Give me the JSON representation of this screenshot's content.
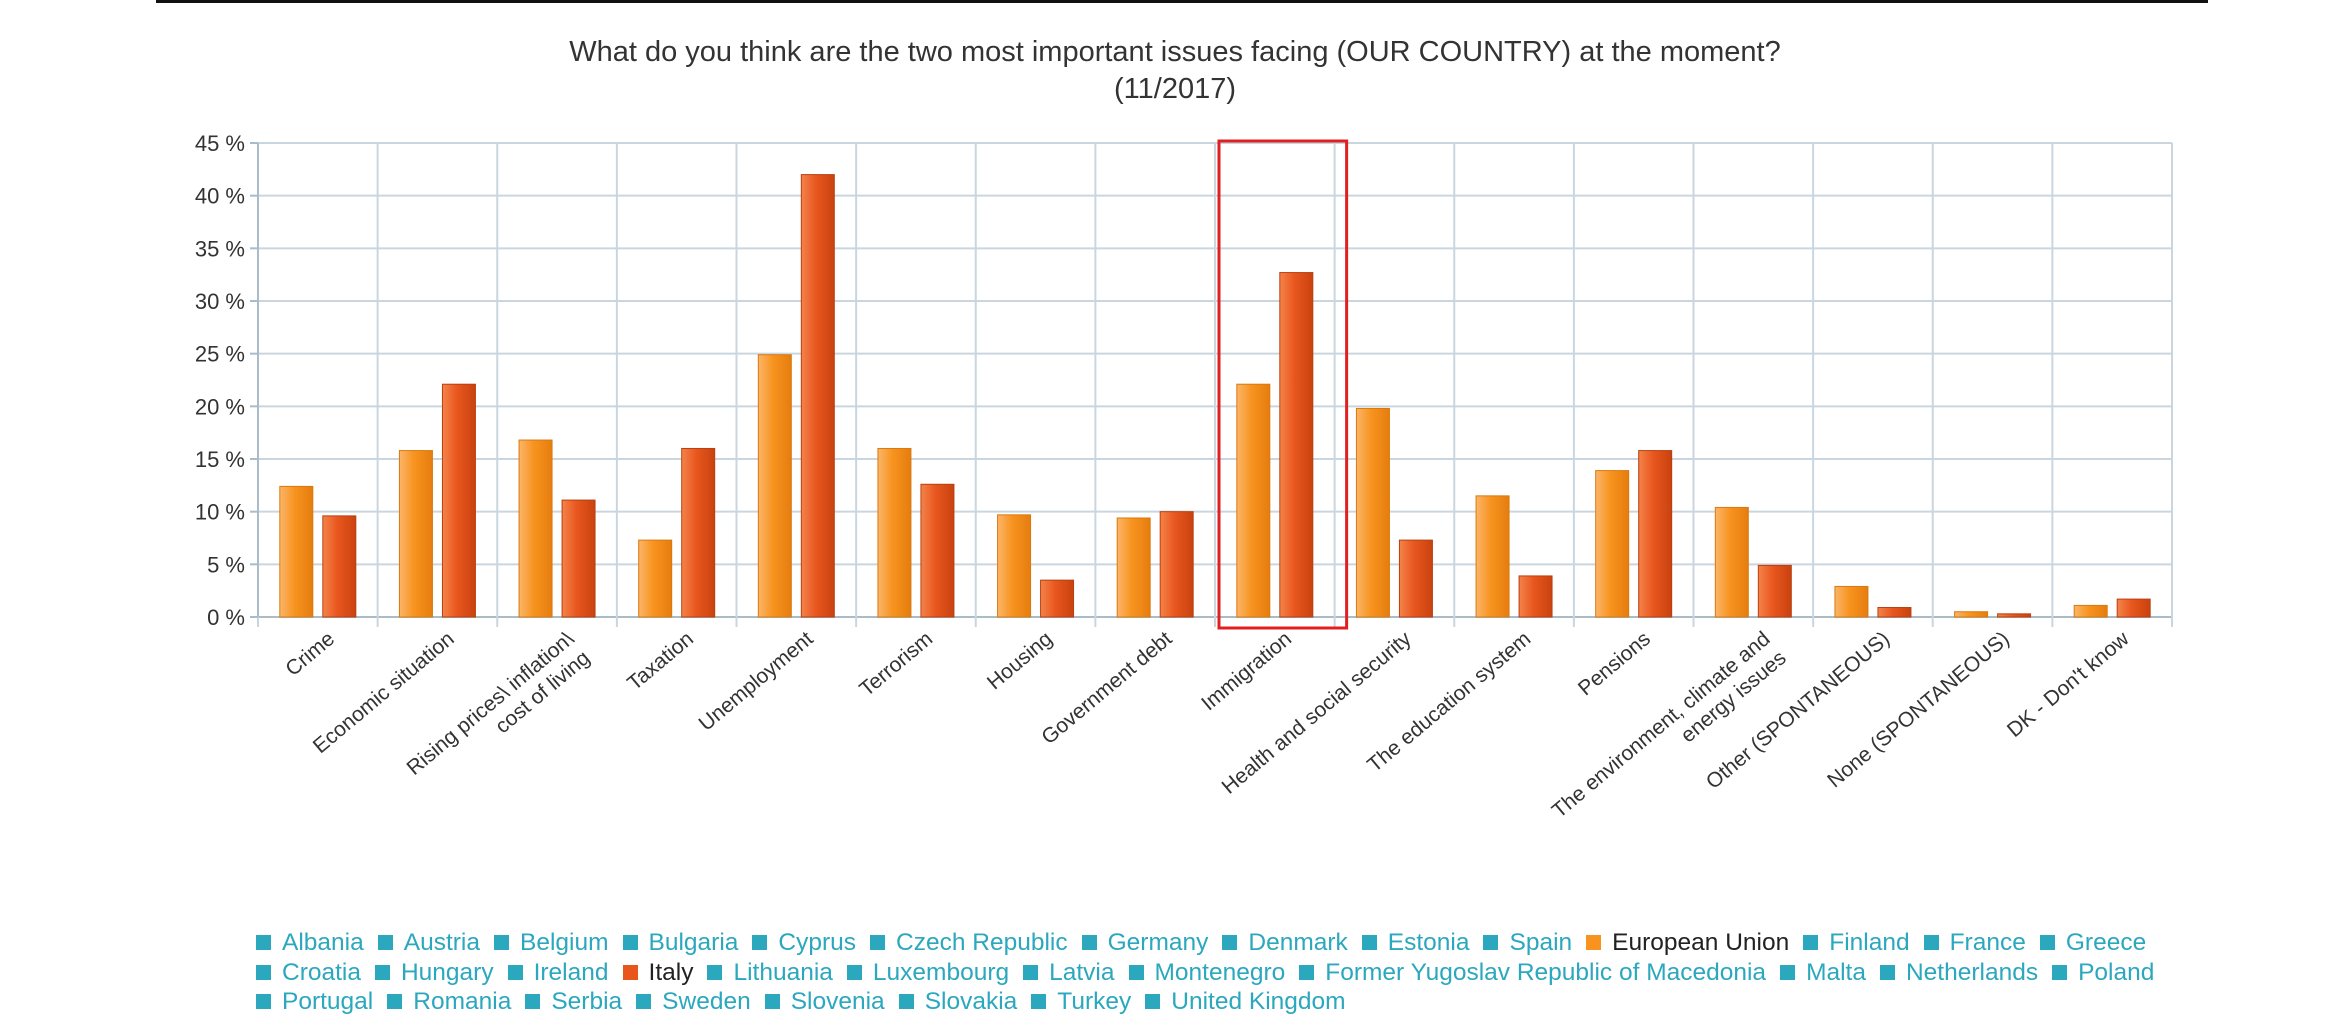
{
  "chart_data": {
    "type": "bar",
    "title": "What do you think are the two most important issues facing (OUR COUNTRY) at the moment?",
    "subtitle": "(11/2017)",
    "categories": [
      "Crime",
      "Economic situation",
      "Rising prices\\ inflation\\ cost of living",
      "Taxation",
      "Unemployment",
      "Terrorism",
      "Housing",
      "Government debt",
      "Immigration",
      "Health and social security",
      "The education system",
      "Pensions",
      "The environment, climate and energy issues",
      "Other (SPONTANEOUS)",
      "None (SPONTANEOUS)",
      "DK - Don't know"
    ],
    "series": [
      {
        "name": "European Union",
        "color": "#f7931e",
        "values": [
          12.4,
          15.8,
          16.8,
          7.3,
          24.9,
          16.0,
          9.7,
          9.4,
          22.1,
          19.8,
          11.5,
          13.9,
          10.4,
          2.9,
          0.5,
          1.1
        ]
      },
      {
        "name": "Italy",
        "color": "#e8561e",
        "values": [
          9.6,
          22.1,
          11.1,
          16.0,
          42.0,
          12.6,
          3.5,
          10.0,
          32.7,
          7.3,
          3.9,
          15.8,
          4.9,
          0.9,
          0.3,
          1.7
        ]
      }
    ],
    "ylim": [
      0,
      45
    ],
    "yticks": [
      "0 %",
      "5 %",
      "10 %",
      "15 %",
      "20 %",
      "25 %",
      "30 %",
      "35 %",
      "40 %",
      "45 %"
    ],
    "yticks_values": [
      0,
      5,
      10,
      15,
      20,
      25,
      30,
      35,
      40,
      45
    ],
    "grid": true,
    "highlighted_category": "Immigration",
    "highlight_color": "#e02020",
    "legend_position": "bottom",
    "legend": [
      {
        "label": "Albania",
        "color": "#2ba7be",
        "active": false
      },
      {
        "label": "Austria",
        "color": "#2ba7be",
        "active": false
      },
      {
        "label": "Belgium",
        "color": "#2ba7be",
        "active": false
      },
      {
        "label": "Bulgaria",
        "color": "#2ba7be",
        "active": false
      },
      {
        "label": "Cyprus",
        "color": "#2ba7be",
        "active": false
      },
      {
        "label": "Czech Republic",
        "color": "#2ba7be",
        "active": false
      },
      {
        "label": "Germany",
        "color": "#2ba7be",
        "active": false
      },
      {
        "label": "Denmark",
        "color": "#2ba7be",
        "active": false
      },
      {
        "label": "Estonia",
        "color": "#2ba7be",
        "active": false
      },
      {
        "label": "Spain",
        "color": "#2ba7be",
        "active": false
      },
      {
        "label": "European Union",
        "color": "#f7931e",
        "active": true
      },
      {
        "label": "Finland",
        "color": "#2ba7be",
        "active": false
      },
      {
        "label": "France",
        "color": "#2ba7be",
        "active": false
      },
      {
        "label": "Greece",
        "color": "#2ba7be",
        "active": false
      },
      {
        "label": "Croatia",
        "color": "#2ba7be",
        "active": false
      },
      {
        "label": "Hungary",
        "color": "#2ba7be",
        "active": false
      },
      {
        "label": "Ireland",
        "color": "#2ba7be",
        "active": false
      },
      {
        "label": "Italy",
        "color": "#e8561e",
        "active": true
      },
      {
        "label": "Lithuania",
        "color": "#2ba7be",
        "active": false
      },
      {
        "label": "Luxembourg",
        "color": "#2ba7be",
        "active": false
      },
      {
        "label": "Latvia",
        "color": "#2ba7be",
        "active": false
      },
      {
        "label": "Montenegro",
        "color": "#2ba7be",
        "active": false
      },
      {
        "label": "Former Yugoslav Republic of Macedonia",
        "color": "#2ba7be",
        "active": false
      },
      {
        "label": "Malta",
        "color": "#2ba7be",
        "active": false
      },
      {
        "label": "Netherlands",
        "color": "#2ba7be",
        "active": false
      },
      {
        "label": "Poland",
        "color": "#2ba7be",
        "active": false
      },
      {
        "label": "Portugal",
        "color": "#2ba7be",
        "active": false
      },
      {
        "label": "Romania",
        "color": "#2ba7be",
        "active": false
      },
      {
        "label": "Serbia",
        "color": "#2ba7be",
        "active": false
      },
      {
        "label": "Sweden",
        "color": "#2ba7be",
        "active": false
      },
      {
        "label": "Slovenia",
        "color": "#2ba7be",
        "active": false
      },
      {
        "label": "Slovakia",
        "color": "#2ba7be",
        "active": false
      },
      {
        "label": "Turkey",
        "color": "#2ba7be",
        "active": false
      },
      {
        "label": "United Kingdom",
        "color": "#2ba7be",
        "active": false
      }
    ]
  }
}
